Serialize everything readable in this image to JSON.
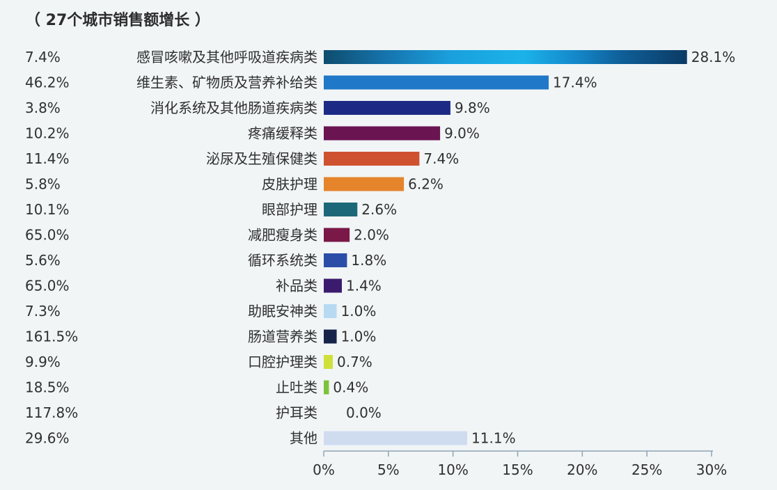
{
  "chart_data": {
    "type": "bar",
    "orientation": "horizontal",
    "title": "（ 27个城市销售额增长 ）",
    "categories": [
      "感冒咳嗽及其他呼吸道疾病类",
      "维生素、矿物质及营养补给类",
      "消化系统及其他肠道疾病类",
      "疼痛缓释类",
      "泌尿及生殖保健类",
      "皮肤护理",
      "眼部护理",
      "减肥瘦身类",
      "循环系统类",
      "补品类",
      "助眠安神类",
      "肠道营养类",
      "口腔护理类",
      "止吐类",
      "护耳类",
      "其他"
    ],
    "values": [
      28.1,
      17.4,
      9.8,
      9.0,
      7.4,
      6.2,
      2.6,
      2.0,
      1.8,
      1.4,
      1.0,
      1.0,
      0.7,
      0.4,
      0.0,
      11.1
    ],
    "value_labels": [
      "28.1%",
      "17.4%",
      "9.8%",
      "9.0%",
      "7.4%",
      "6.2%",
      "2.6%",
      "2.0%",
      "1.8%",
      "1.4%",
      "1.0%",
      "1.0%",
      "0.7%",
      "0.4%",
      "0.0%",
      "11.1%"
    ],
    "growth_labels": [
      "7.4%",
      "46.2%",
      "3.8%",
      "10.2%",
      "11.4%",
      "5.8%",
      "10.1%",
      "65.0%",
      "5.6%",
      "65.0%",
      "7.3%",
      "161.5%",
      "9.9%",
      "18.5%",
      "117.8%",
      "29.6%"
    ],
    "colors": [
      "#1a7fb8",
      "#1f78c8",
      "#1c2a86",
      "#6a1452",
      "#cf5230",
      "#e5842a",
      "#1d6878",
      "#7a1848",
      "#2a4ea8",
      "#3b1b6e",
      "#b7daf2",
      "#17244a",
      "#cfe03a",
      "#7cc23a",
      "#9aa0a6",
      "#cfdcf0"
    ],
    "xlim": [
      0,
      30
    ],
    "xticks": [
      0,
      5,
      10,
      15,
      20,
      25,
      30
    ],
    "xtick_labels": [
      "0%",
      "5%",
      "10%",
      "15%",
      "20%",
      "25%",
      "30%"
    ],
    "grid": false,
    "legend": "none"
  }
}
